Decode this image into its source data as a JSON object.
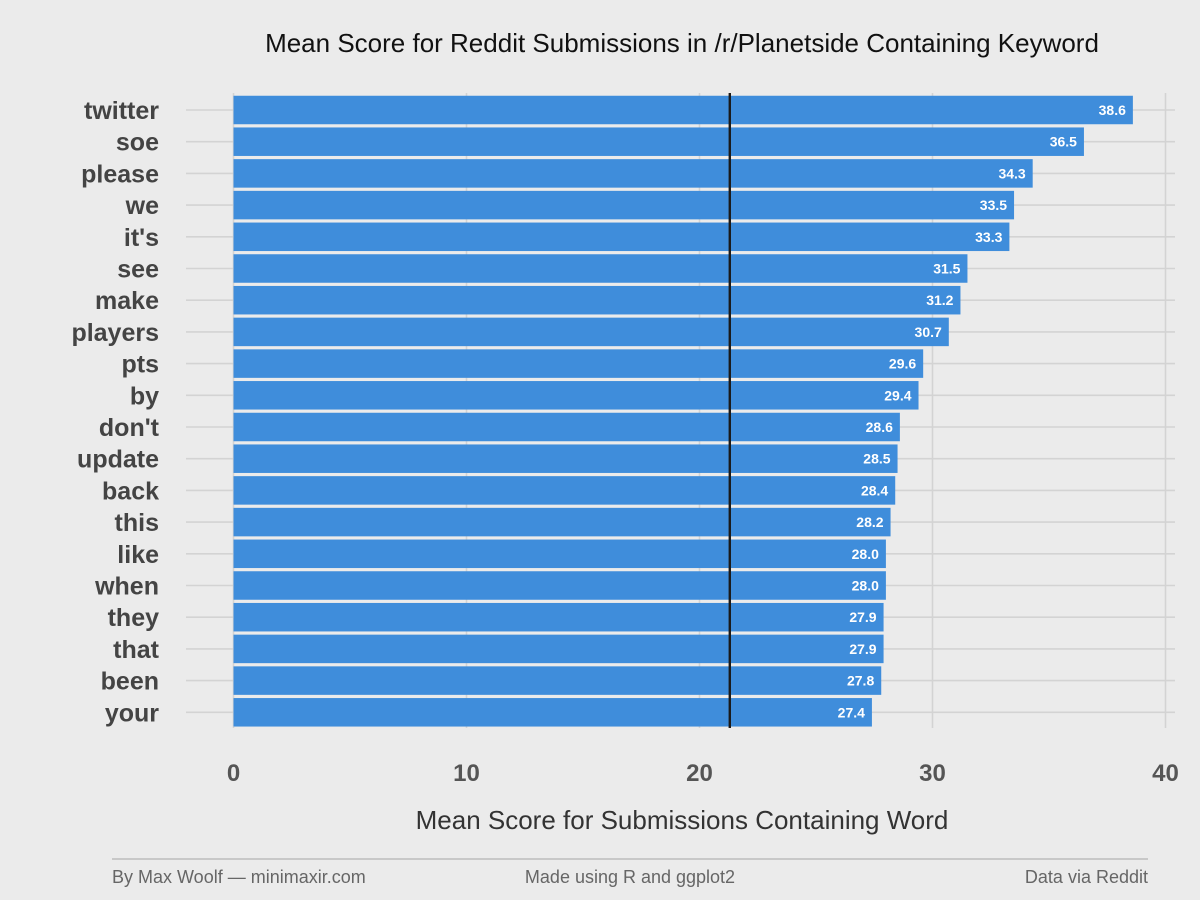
{
  "chart_data": {
    "type": "bar",
    "orientation": "horizontal",
    "title": "Mean Score for Reddit Submissions in /r/Planetside Containing Keyword",
    "xlabel": "Mean Score for Submissions Containing Word",
    "ylabel": "",
    "categories": [
      "twitter",
      "soe",
      "please",
      "we",
      "it's",
      "see",
      "make",
      "players",
      "pts",
      "by",
      "don't",
      "update",
      "back",
      "this",
      "like",
      "when",
      "they",
      "that",
      "been",
      "your"
    ],
    "values": [
      38.6,
      36.5,
      34.3,
      33.5,
      33.3,
      31.5,
      31.2,
      30.7,
      29.6,
      29.4,
      28.6,
      28.5,
      28.4,
      28.2,
      28.0,
      28.0,
      27.9,
      27.9,
      27.8,
      27.4
    ],
    "value_labels": [
      "38.6",
      "36.5",
      "34.3",
      "33.5",
      "33.3",
      "31.5",
      "31.2",
      "30.7",
      "29.6",
      "29.4",
      "28.6",
      "28.5",
      "28.4",
      "28.2",
      "28.0",
      "28.0",
      "27.9",
      "27.9",
      "27.8",
      "27.4"
    ],
    "xlim": [
      0,
      40
    ],
    "xticks": [
      0,
      10,
      20,
      30,
      40
    ],
    "xtick_labels": [
      "0",
      "10",
      "20",
      "30",
      "40"
    ],
    "reference_line": 21.3,
    "grid": true,
    "legend": "none",
    "colors": {
      "bar": "#3f8ddb",
      "background": "#ebebeb",
      "grid": "#d3d3d3",
      "reference_line": "#1a1a1a"
    }
  },
  "footer": {
    "left": "By Max Woolf — minimaxir.com",
    "center": "Made using R and ggplot2",
    "right": "Data via Reddit"
  }
}
